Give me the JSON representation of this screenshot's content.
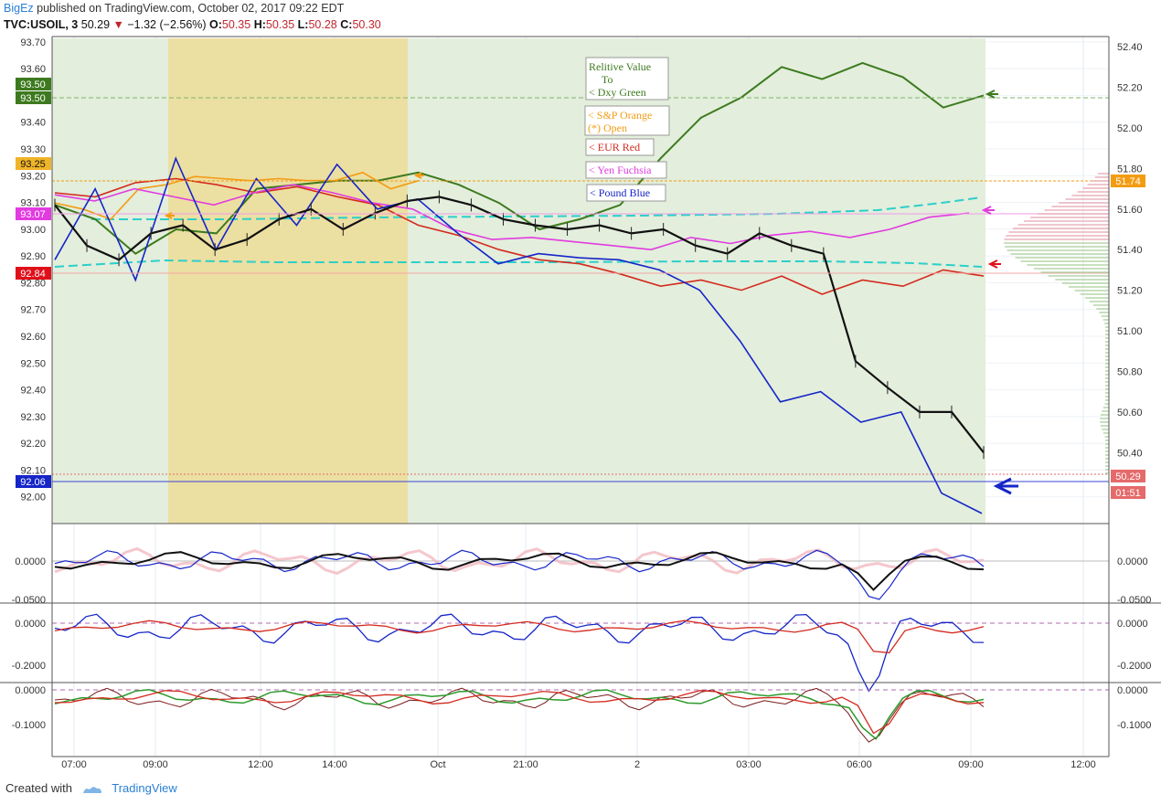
{
  "header": {
    "user": "BigEz",
    "published": "published on TradingView.com, October 02, 2017 09:22 EDT",
    "symbol": "TVC:USOIL, 3",
    "last": "50.29",
    "change": "−1.32 (−2.56%)",
    "o_label": "O:",
    "o_value": "50.35",
    "h_label": "H:",
    "h_value": "50.35",
    "l_label": "L:",
    "l_value": "50.28",
    "c_label": "C:",
    "c_value": "50.30"
  },
  "footer": {
    "created_with": "Created with",
    "brand": "TradingView"
  },
  "colors": {
    "dxy": "#3d7a1f",
    "sp": "#f39c12",
    "eur": "#d42a1e",
    "yen": "#e23be0",
    "pound": "#1525c8",
    "candles": "#111111",
    "ma": "#2ccfc9"
  },
  "legend": {
    "dxy_line1": "Relitive Value",
    "dxy_line2": "To",
    "dxy_line3": "< Dxy Green",
    "sp_line1": "< S&P Orange",
    "sp_line2": "(*) Open",
    "eur": "< EUR Red",
    "yen": "< Yen Fuchsia",
    "pound": "< Pound Blue"
  },
  "chart_data": {
    "type": "line",
    "x_ticks": [
      "07:00",
      "09:00",
      "12:00",
      "14:00",
      "Oct",
      "21:00",
      "2",
      "03:00",
      "06:00",
      "09:00",
      "12:00"
    ],
    "left_axis": {
      "ticks": [
        "93.70",
        "93.60",
        "93.50",
        "93.40",
        "93.30",
        "93.20",
        "93.10",
        "93.00",
        "92.90",
        "92.80",
        "92.70",
        "92.60",
        "92.50",
        "92.40",
        "92.30",
        "92.20",
        "92.10",
        "92.00"
      ],
      "range": [
        91.9,
        93.72
      ]
    },
    "right_axis": {
      "ticks": [
        "52.40",
        "52.20",
        "52.00",
        "51.80",
        "51.60",
        "51.40",
        "51.20",
        "51.00",
        "50.80",
        "50.60",
        "50.40"
      ],
      "range": [
        50.05,
        52.45
      ]
    },
    "left_badges": [
      {
        "value": "93.50",
        "color": "#3d7a1f"
      },
      {
        "value": "93.50",
        "color": "#3d7a1f"
      },
      {
        "value": "93.25",
        "color": "#f0b429"
      },
      {
        "value": "93.07",
        "color": "#e23be0"
      },
      {
        "value": "92.84",
        "color": "#e0101a"
      },
      {
        "value": "92.06",
        "color": "#1525c8"
      }
    ],
    "right_badges": [
      {
        "value": "51.74",
        "color": "#f39c12"
      },
      {
        "value": "50.29",
        "color": "#e56a6a"
      },
      {
        "value": "01:51",
        "color": "#e56a6a"
      }
    ],
    "series": [
      {
        "name": "Dxy Green",
        "color": "#3d7a1f",
        "values": [
          51.62,
          51.55,
          51.38,
          51.5,
          51.48,
          51.7,
          51.72,
          51.74,
          51.74,
          51.78,
          51.72,
          51.63,
          51.5,
          51.55,
          51.62,
          51.85,
          52.05,
          52.15,
          52.3,
          52.24,
          52.32,
          52.25,
          52.1,
          52.16
        ]
      },
      {
        "name": "S&P Orange",
        "color": "#f39c12",
        "values": [
          51.63,
          51.6,
          51.55,
          51.7,
          51.72,
          51.76,
          51.75,
          51.74,
          51.75,
          51.74,
          51.74,
          51.78,
          51.7,
          51.74
        ]
      },
      {
        "name": "EUR Red",
        "color": "#d42a1e",
        "values": [
          51.68,
          51.66,
          51.73,
          51.75,
          51.72,
          51.68,
          51.71,
          51.66,
          51.62,
          51.52,
          51.47,
          51.4,
          51.35,
          51.33,
          51.28,
          51.22,
          51.25,
          51.2,
          51.27,
          51.18,
          51.25,
          51.22,
          51.3,
          51.27
        ]
      },
      {
        "name": "Yen Fuchsia",
        "color": "#e23be0",
        "values": [
          51.67,
          51.64,
          51.7,
          51.66,
          51.62,
          51.68,
          51.72,
          51.68,
          51.63,
          51.6,
          51.5,
          51.45,
          51.46,
          51.44,
          51.42,
          51.4,
          51.46,
          51.43,
          51.47,
          51.49,
          51.46,
          51.5,
          51.56,
          51.58
        ]
      },
      {
        "name": "Pound Blue",
        "color": "#1525c8",
        "values": [
          51.35,
          51.7,
          51.25,
          51.85,
          51.4,
          51.75,
          51.52,
          51.82,
          51.6,
          51.65,
          51.48,
          51.33,
          51.38,
          51.36,
          51.35,
          51.3,
          51.2,
          50.95,
          50.65,
          50.7,
          50.55,
          50.6,
          50.2,
          50.1
        ]
      }
    ],
    "candles_close": [
      51.62,
      51.42,
      51.35,
      51.48,
      51.52,
      51.4,
      51.45,
      51.55,
      51.6,
      51.5,
      51.58,
      51.64,
      51.66,
      51.62,
      51.55,
      51.52,
      51.5,
      51.52,
      51.48,
      51.5,
      51.42,
      51.38,
      51.48,
      51.42,
      51.38,
      50.85,
      50.72,
      50.6,
      50.6,
      50.4
    ],
    "panel1_ticks": [
      "0.0000",
      "-0.0500"
    ],
    "panel2_ticks": [
      "0.0000",
      "-0.2000"
    ],
    "panel3_ticks": [
      "0.0000",
      "-0.1000"
    ],
    "legend_placement": "top-center"
  }
}
